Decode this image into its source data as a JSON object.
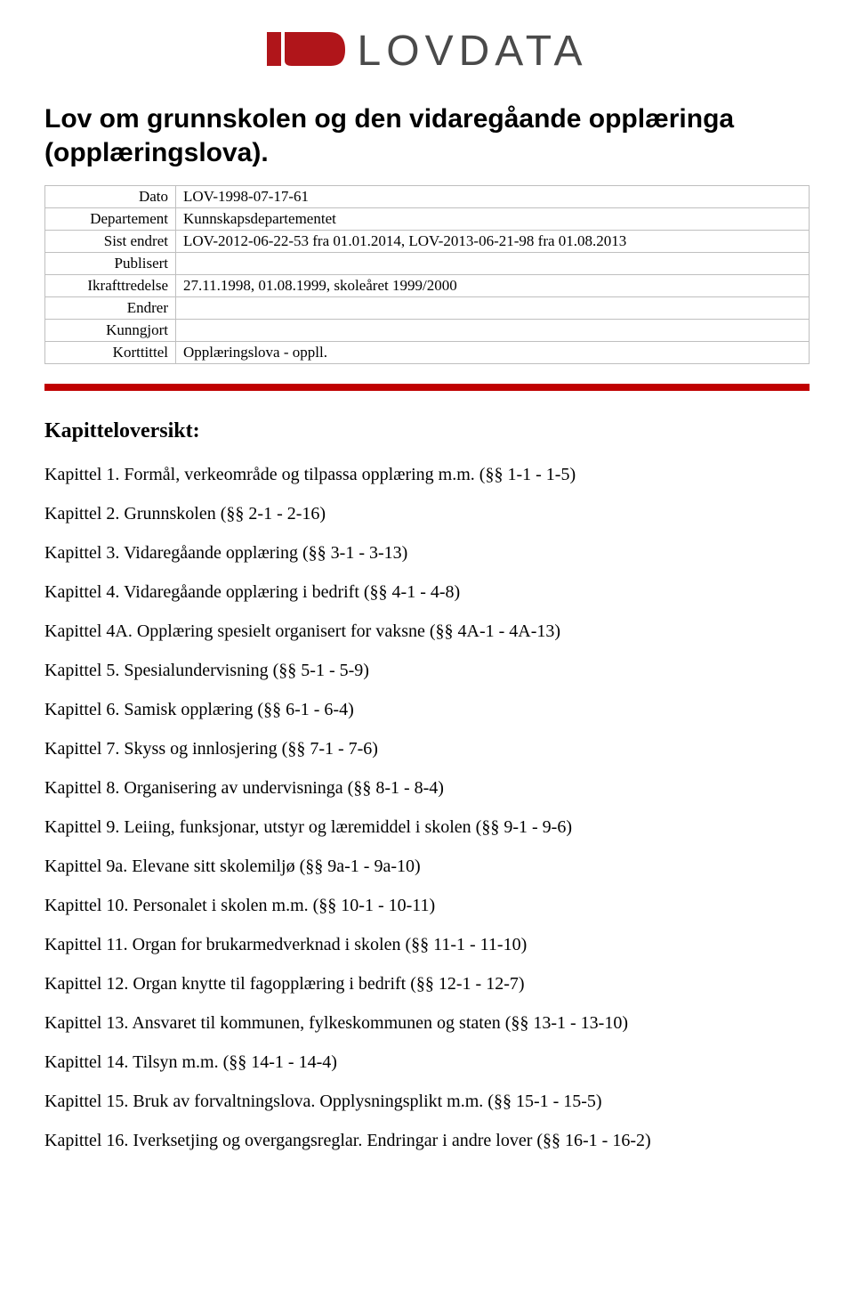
{
  "logo": {
    "text": "LOVDATA",
    "mark_color": "#b0151a",
    "text_color": "#4a4a4a"
  },
  "title": "Lov om grunnskolen og den vidaregåande opplæringa (opplæringslova).",
  "meta_rows": [
    {
      "label": "Dato",
      "value": "LOV-1998-07-17-61"
    },
    {
      "label": "Departement",
      "value": "Kunnskapsdepartementet"
    },
    {
      "label": "Sist endret",
      "value": "LOV-2012-06-22-53 fra 01.01.2014, LOV-2013-06-21-98 fra 01.08.2013"
    },
    {
      "label": "Publisert",
      "value": ""
    },
    {
      "label": "Ikrafttredelse",
      "value": "27.11.1998, 01.08.1999, skoleåret 1999/2000"
    },
    {
      "label": "Endrer",
      "value": ""
    },
    {
      "label": "Kunngjort",
      "value": ""
    },
    {
      "label": "Korttittel",
      "value": "Opplæringslova - oppll."
    }
  ],
  "rule_color": "#c00000",
  "kap_head": "Kapitteloversikt:",
  "chapters": [
    "Kapittel 1. Formål, verkeområde og tilpassa opplæring m.m. (§§ 1-1 - 1-5)",
    "Kapittel 2. Grunnskolen (§§ 2-1 - 2-16)",
    "Kapittel 3. Vidaregåande opplæring (§§ 3-1 - 3-13)",
    "Kapittel 4. Vidaregåande opplæring i bedrift (§§ 4-1 - 4-8)",
    "Kapittel 4A. Opplæring spesielt organisert for vaksne (§§ 4A-1 - 4A-13)",
    "Kapittel 5. Spesialundervisning (§§ 5-1 - 5-9)",
    "Kapittel 6. Samisk opplæring (§§ 6-1 - 6-4)",
    "Kapittel 7. Skyss og innlosjering (§§ 7-1 - 7-6)",
    "Kapittel 8. Organisering av undervisninga (§§ 8-1 - 8-4)",
    "Kapittel 9. Leiing, funksjonar, utstyr og læremiddel i skolen (§§ 9-1 - 9-6)",
    "Kapittel 9a. Elevane sitt skolemiljø (§§ 9a-1 - 9a-10)",
    "Kapittel 10. Personalet i skolen m.m. (§§ 10-1 - 10-11)",
    "Kapittel 11. Organ for brukarmedverknad i skolen (§§ 11-1 - 11-10)",
    "Kapittel 12. Organ knytte til fagopplæring i bedrift (§§ 12-1 - 12-7)",
    "Kapittel 13. Ansvaret til kommunen, fylkeskommunen og staten (§§ 13-1 - 13-10)",
    "Kapittel 14. Tilsyn m.m. (§§ 14-1 - 14-4)",
    "Kapittel 15. Bruk av forvaltningslova. Opplysningsplikt m.m. (§§ 15-1 - 15-5)",
    "Kapittel 16. Iverksetjing og overgangsreglar. Endringar i andre lover (§§ 16-1 - 16-2)"
  ]
}
